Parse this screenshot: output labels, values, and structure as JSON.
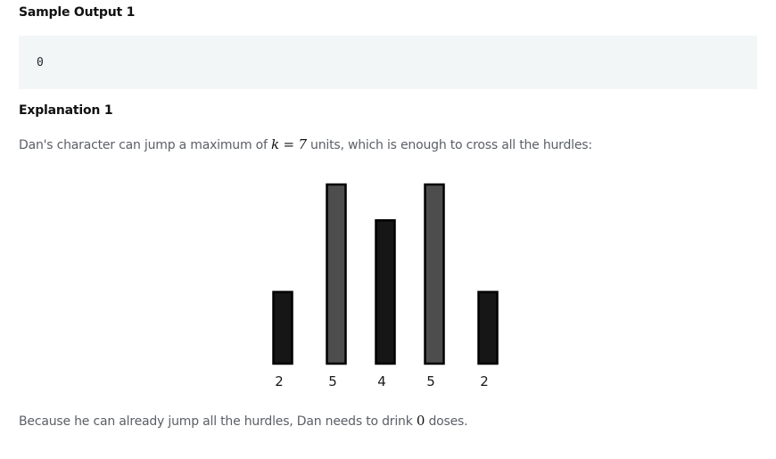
{
  "sample_output": {
    "heading": "Sample Output 1",
    "code": "0"
  },
  "explanation": {
    "heading": "Explanation 1",
    "para1_before": "Dan's character can jump a maximum of ",
    "para1_math_var": "k",
    "para1_math_op": " = ",
    "para1_math_val": "7",
    "para1_after": " units, which is enough to cross all the hurdles:",
    "para2_before": "Because he can already jump all the hurdles, Dan needs to drink ",
    "para2_math": "0",
    "para2_after": " doses."
  },
  "chart_data": {
    "type": "bar",
    "categories": [
      "2",
      "5",
      "4",
      "5",
      "2"
    ],
    "values": [
      2,
      5,
      4,
      5,
      2
    ],
    "title": "",
    "xlabel": "",
    "ylabel": "",
    "ylim": [
      0,
      5
    ],
    "grid": false,
    "colors": [
      "#161616",
      "#4d4d4d",
      "#161616",
      "#4d4d4d",
      "#161616"
    ]
  }
}
